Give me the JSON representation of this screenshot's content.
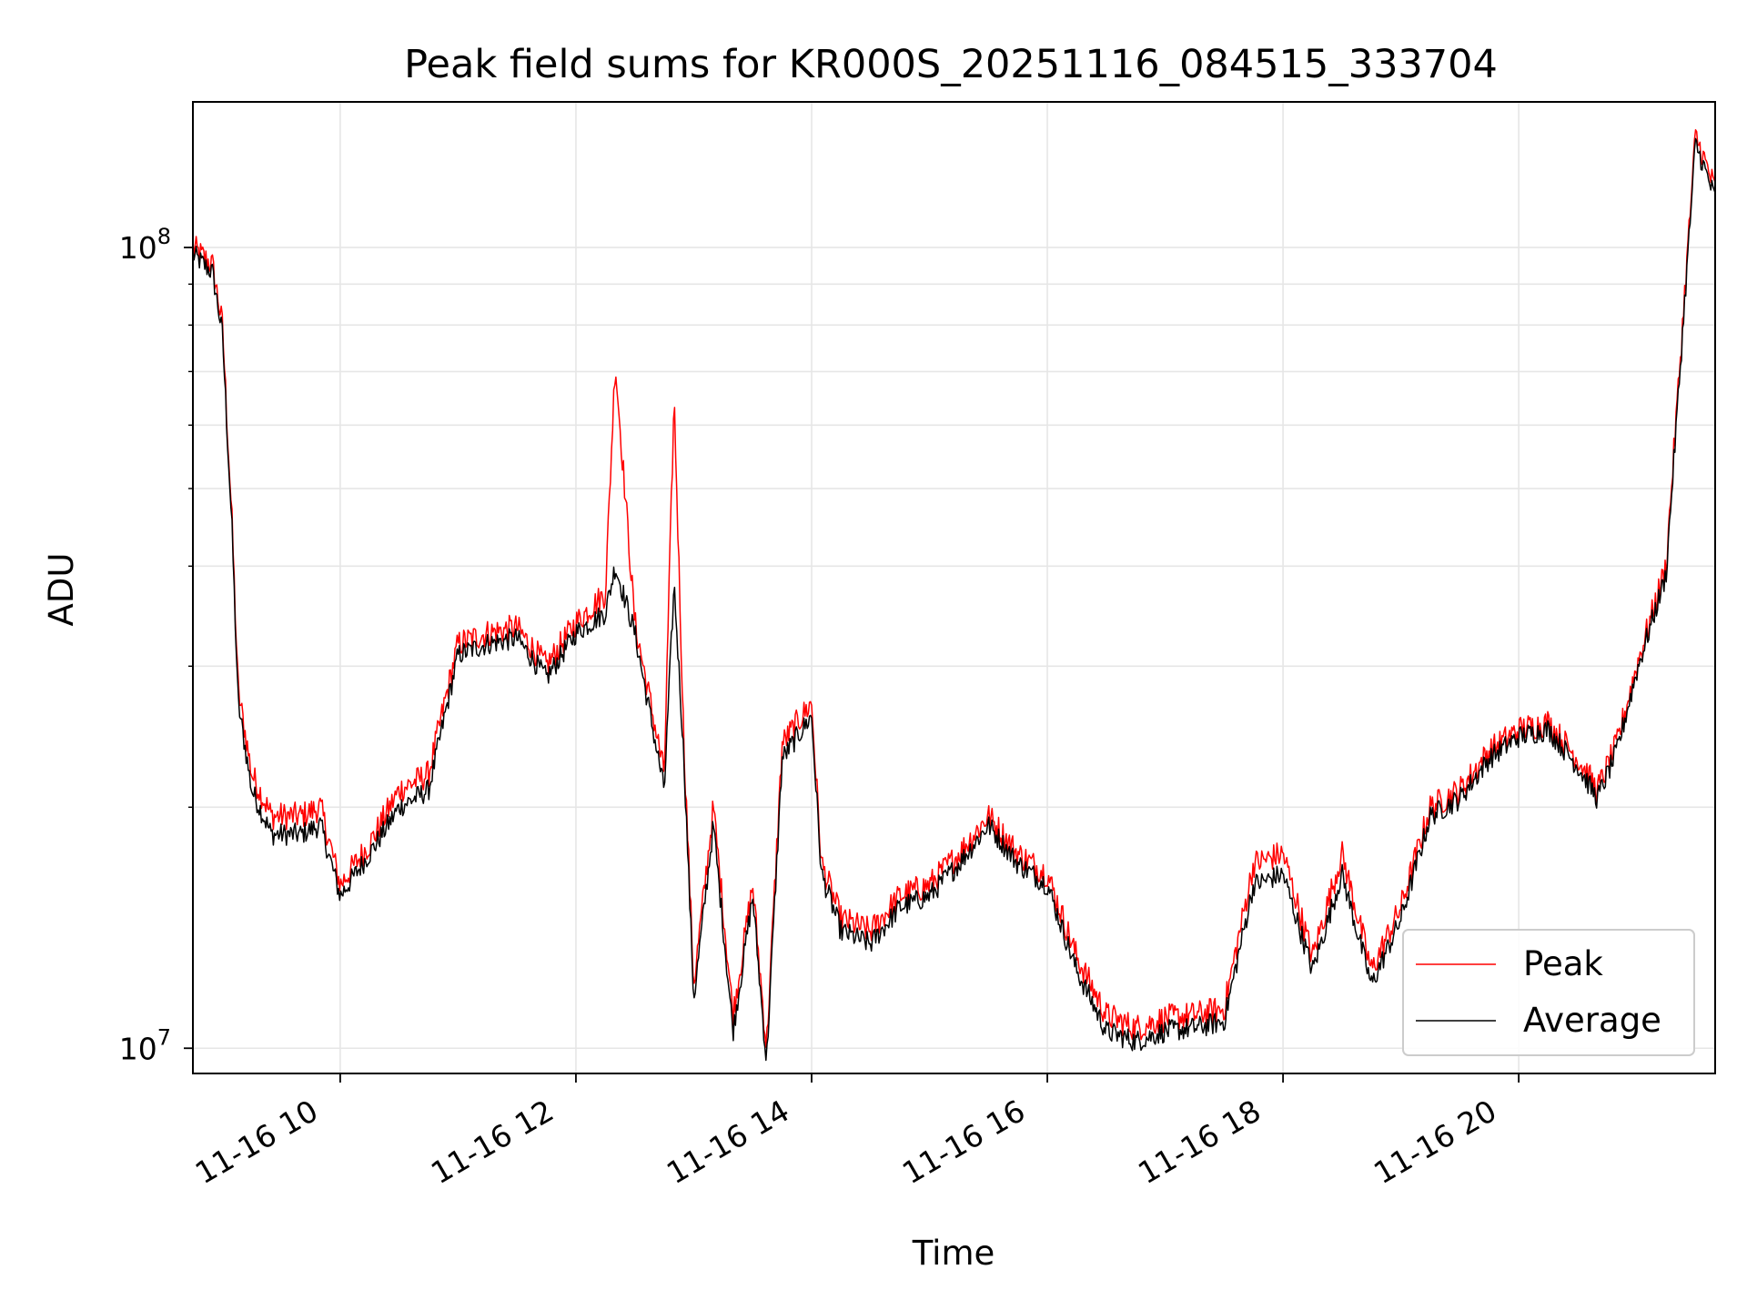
{
  "chart_data": {
    "type": "line",
    "title": "Peak field sums for KR000S_20251116_084515_333704",
    "xlabel": "Time",
    "ylabel": "ADU",
    "yscale": "log",
    "grid": true,
    "legend_position": "lower-right",
    "x_range": [
      "2025-11-16 08:45",
      "2025-11-16 21:40"
    ],
    "ylim": [
      9300000,
      152000000
    ],
    "x_ticks": [
      {
        "value": "2025-11-16 10:00",
        "label": "11-16 10"
      },
      {
        "value": "2025-11-16 12:00",
        "label": "11-16 12"
      },
      {
        "value": "2025-11-16 14:00",
        "label": "11-16 14"
      },
      {
        "value": "2025-11-16 16:00",
        "label": "11-16 16"
      },
      {
        "value": "2025-11-16 18:00",
        "label": "11-16 18"
      },
      {
        "value": "2025-11-16 20:00",
        "label": "11-16 20"
      }
    ],
    "y_ticks": [
      {
        "value": 10000000,
        "base": "10",
        "exp": "7"
      },
      {
        "value": 100000000,
        "base": "10",
        "exp": "8"
      }
    ],
    "x": [
      "08:45",
      "08:55",
      "09:00",
      "09:05",
      "09:08",
      "09:15",
      "09:25",
      "09:40",
      "09:50",
      "10:00",
      "10:15",
      "10:30",
      "10:45",
      "11:00",
      "11:15",
      "11:30",
      "11:45",
      "12:00",
      "12:15",
      "12:20",
      "12:30",
      "12:45",
      "12:50",
      "12:55",
      "13:00",
      "13:10",
      "13:20",
      "13:30",
      "13:37",
      "13:45",
      "14:00",
      "14:05",
      "14:15",
      "14:30",
      "14:45",
      "15:00",
      "15:15",
      "15:30",
      "15:45",
      "16:00",
      "16:15",
      "16:30",
      "16:45",
      "17:00",
      "17:15",
      "17:30",
      "17:45",
      "18:00",
      "18:15",
      "18:30",
      "18:45",
      "19:00",
      "19:15",
      "19:30",
      "19:45",
      "20:00",
      "20:15",
      "20:30",
      "20:40",
      "20:50",
      "21:00",
      "21:15",
      "21:30",
      "21:40"
    ],
    "series": [
      {
        "name": "Peak",
        "color": "#ff0000",
        "values": [
          100000000,
          95000000,
          80000000,
          45000000,
          28000000,
          22000000,
          19500000,
          19500000,
          20000000,
          16000000,
          18000000,
          21000000,
          22000000,
          32000000,
          33000000,
          33500000,
          30000000,
          34000000,
          37000000,
          72000000,
          34000000,
          22000000,
          65000000,
          24000000,
          12000000,
          20000000,
          11000000,
          16000000,
          10000000,
          24000000,
          27000000,
          17000000,
          14500000,
          14000000,
          15500000,
          16000000,
          17500000,
          19500000,
          17500000,
          16500000,
          13000000,
          11000000,
          10600000,
          10900000,
          11000000,
          11200000,
          17000000,
          17500000,
          13000000,
          17500000,
          12500000,
          15000000,
          20000000,
          21000000,
          23500000,
          25000000,
          25500000,
          23000000,
          21000000,
          24000000,
          30000000,
          40000000,
          138000000,
          118000000
        ]
      },
      {
        "name": "Average",
        "color": "#000000",
        "values": [
          98000000,
          93000000,
          78000000,
          44000000,
          27000000,
          21000000,
          18500000,
          18500000,
          19000000,
          15500000,
          17500000,
          20000000,
          21000000,
          31000000,
          32000000,
          32500000,
          29000000,
          33000000,
          35000000,
          40000000,
          33000000,
          21000000,
          38000000,
          23000000,
          11500000,
          19000000,
          10500000,
          15500000,
          9600000,
          23000000,
          26000000,
          16500000,
          14000000,
          13500000,
          15000000,
          15500000,
          17000000,
          19000000,
          17000000,
          16000000,
          12500000,
          10500000,
          10200000,
          10500000,
          10600000,
          10800000,
          16000000,
          16500000,
          12500000,
          16500000,
          12000000,
          14500000,
          19500000,
          20500000,
          23000000,
          24500000,
          25000000,
          22500000,
          20500000,
          23500000,
          29500000,
          39000000,
          135000000,
          115000000
        ]
      }
    ]
  }
}
